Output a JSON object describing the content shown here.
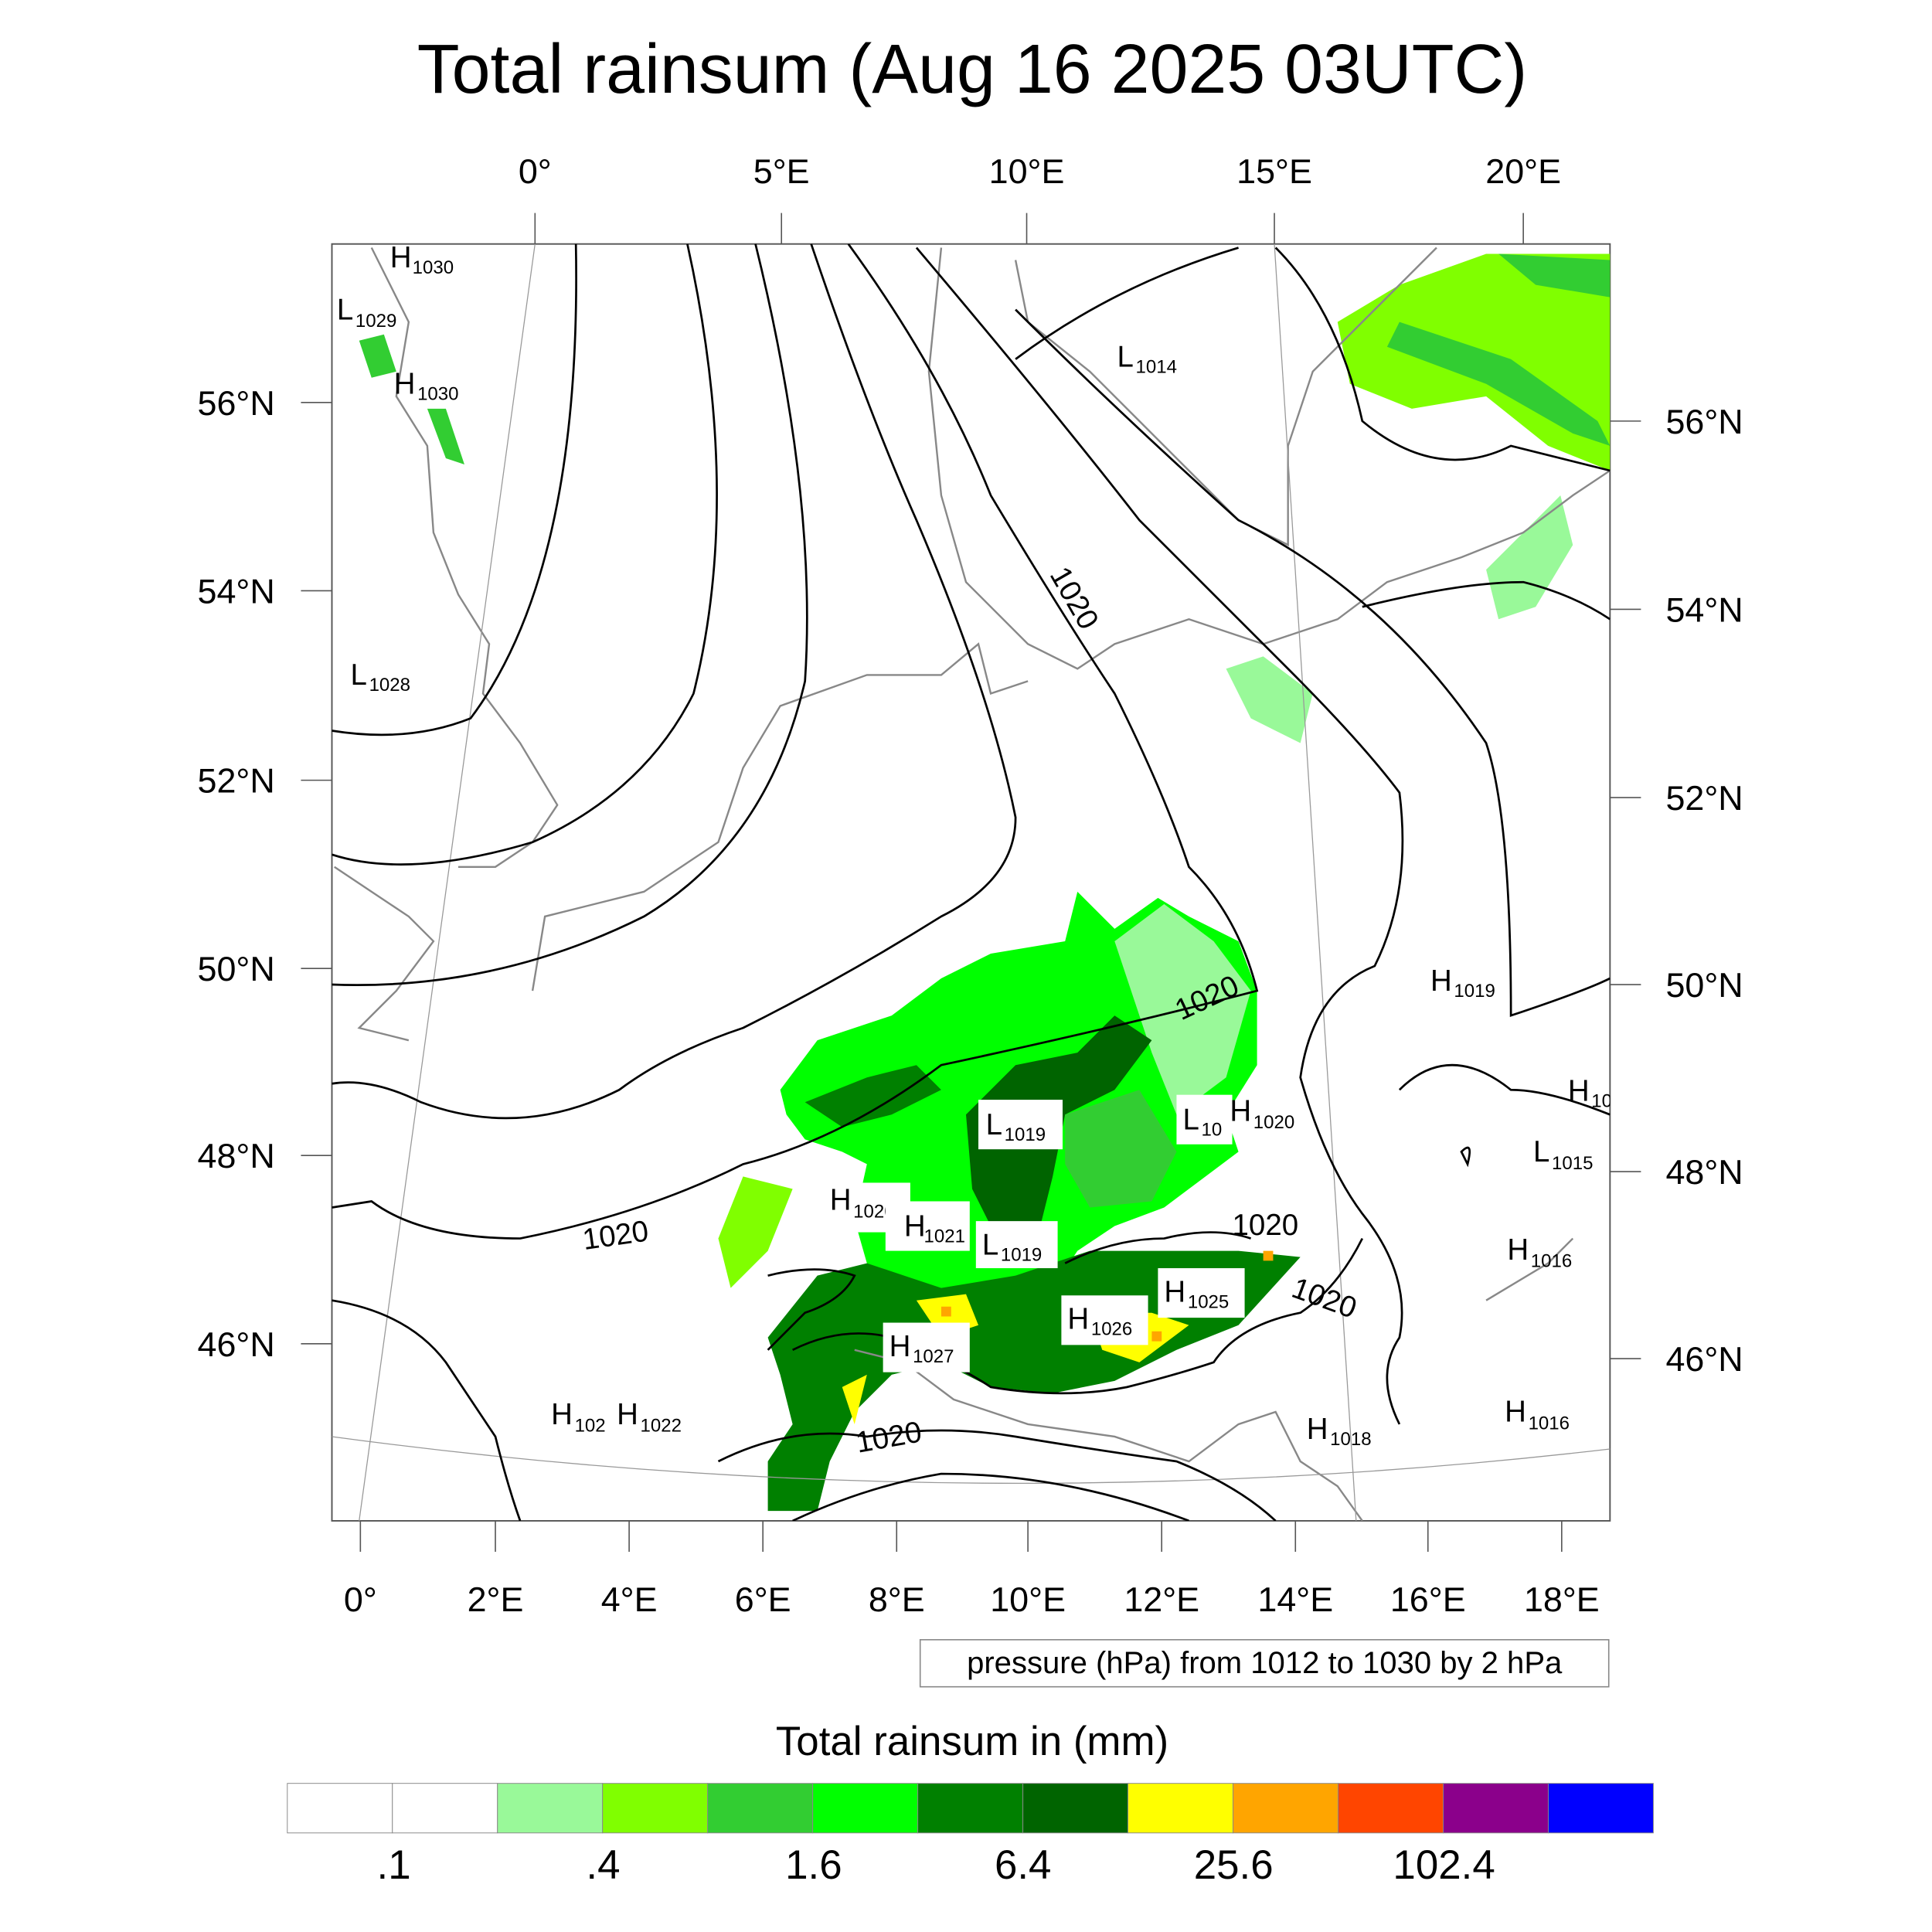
{
  "chart_data": {
    "type": "heatmap",
    "title": "Total rainsum (Aug 16 2025 03UTC)",
    "top_ticks": [
      "0°",
      "5°E",
      "10°E",
      "15°E",
      "20°E"
    ],
    "left_ticks": [
      "56°N",
      "54°N",
      "52°N",
      "50°N",
      "48°N",
      "46°N"
    ],
    "right_ticks": [
      "56°N",
      "54°N",
      "52°N",
      "50°N",
      "48°N",
      "46°N"
    ],
    "bottom_ticks": [
      "0°",
      "2°E",
      "4°E",
      "6°E",
      "8°E",
      "10°E",
      "12°E",
      "14°E",
      "16°E",
      "18°E"
    ],
    "contour_info": "pressure (hPa) from 1012 to 1030 by 2 hPa",
    "colorbar": {
      "title": "Total rainsum in (mm)",
      "colors": [
        "#ffffff",
        "#ffffff",
        "#99f999",
        "#80ff00",
        "#32cd32",
        "#00ff00",
        "#008000",
        "#006400",
        "#ffff00",
        "#ffa500",
        "#ff4500",
        "#8b008b",
        "#0000ff"
      ],
      "tick_labels": [
        ".1",
        ".4",
        "1.6",
        "6.4",
        "25.6",
        "102.4"
      ],
      "levels": [
        0.1,
        0.2,
        0.4,
        0.8,
        1.6,
        3.2,
        6.4,
        12.8,
        25.6,
        51.2,
        102.4,
        204.8
      ]
    },
    "pressure_labels": [
      {
        "t": "H",
        "v": "1030"
      },
      {
        "t": "L",
        "v": "1029"
      },
      {
        "t": "H",
        "v": "1030"
      },
      {
        "t": "L",
        "v": "1014"
      },
      {
        "t": "L",
        "v": "1028"
      },
      {
        "t": "H",
        "v": "1019"
      },
      {
        "t": "H",
        "v": "10"
      },
      {
        "t": "L",
        "v": "1015"
      },
      {
        "t": "L",
        "v": "1019"
      },
      {
        "t": "L",
        "v": "10"
      },
      {
        "t": "H",
        "v": "1020"
      },
      {
        "t": "H",
        "v": "1020"
      },
      {
        "t": "H",
        "v": "1021"
      },
      {
        "t": "L",
        "v": "1019"
      },
      {
        "t": "H",
        "v": "1025"
      },
      {
        "t": "H",
        "v": "1026"
      },
      {
        "t": "H",
        "v": "1027"
      },
      {
        "t": "H",
        "v": "102"
      },
      {
        "t": "H",
        "v": "1022"
      },
      {
        "t": "H",
        "v": "1018"
      },
      {
        "t": "H",
        "v": "1016"
      },
      {
        "t": "H",
        "v": "1016"
      }
    ],
    "contour_labels": [
      "1020",
      "1020",
      "1020",
      "1020",
      "1020",
      "1020"
    ]
  }
}
